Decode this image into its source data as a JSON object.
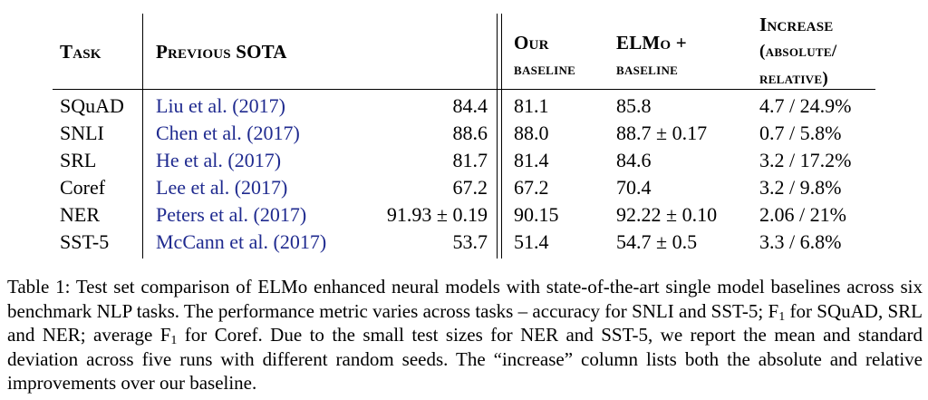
{
  "table": {
    "headers": {
      "task": "Task",
      "previous_sota": "Previous SOTA",
      "our_baseline_1": "Our",
      "our_baseline_2": "baseline",
      "elmo_1": "ELMo +",
      "elmo_2": "baseline",
      "increase_1": "Increase",
      "increase_2": "(absolute/",
      "increase_3": "relative)"
    },
    "rows": [
      {
        "task": "SQuAD",
        "citation": "Liu et al. (2017)",
        "sota": "84.4",
        "baseline": "81.1",
        "elmo": "85.8",
        "increase": "4.7 / 24.9%"
      },
      {
        "task": "SNLI",
        "citation": "Chen et al. (2017)",
        "sota": "88.6",
        "baseline": "88.0",
        "elmo": "88.7 ± 0.17",
        "increase": "0.7 / 5.8%"
      },
      {
        "task": "SRL",
        "citation": "He et al. (2017)",
        "sota": "81.7",
        "baseline": "81.4",
        "elmo": "84.6",
        "increase": "3.2 / 17.2%"
      },
      {
        "task": "Coref",
        "citation": "Lee et al. (2017)",
        "sota": "67.2",
        "baseline": "67.2",
        "elmo": "70.4",
        "increase": "3.2 / 9.8%"
      },
      {
        "task": "NER",
        "citation": "Peters et al. (2017)",
        "sota": "91.93 ± 0.19",
        "baseline": "90.15",
        "elmo": "92.22 ± 0.10",
        "increase": "2.06 / 21%"
      },
      {
        "task": "SST-5",
        "citation": "McCann et al. (2017)",
        "sota": "53.7",
        "baseline": "51.4",
        "elmo": "54.7 ± 0.5",
        "increase": "3.3 / 6.8%"
      }
    ]
  },
  "caption": {
    "part1": "Table 1: Test set comparison of ELMo enhanced neural models with state-of-the-art single model baselines across six benchmark NLP tasks.  The performance metric varies across tasks – accuracy for SNLI and SST-5; F",
    "sub1": "1",
    "part2": " for SQuAD, SRL and NER; average F",
    "sub2": "1",
    "part3": " for Coref. Due to the small test sizes for NER and SST-5, we report the mean and standard deviation across five runs with different random seeds. The “increase” column lists both the absolute and relative improvements over our baseline."
  },
  "colors": {
    "citation_link": "#1f2a8f",
    "text": "#000000"
  }
}
